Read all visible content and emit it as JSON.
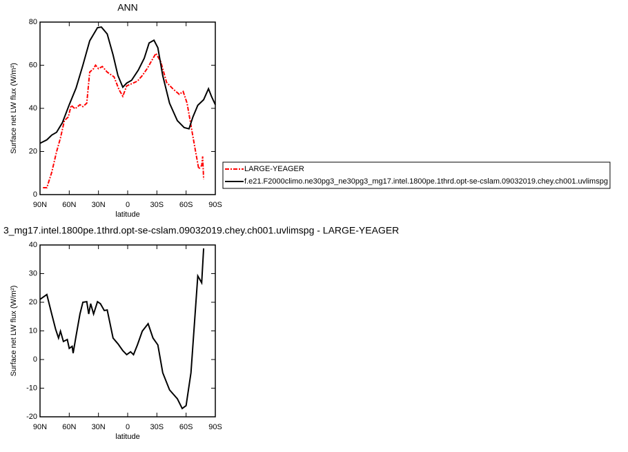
{
  "chart_data": [
    {
      "type": "line",
      "title": "ANN",
      "xlabel": "latitude",
      "ylabel": "Surface net LW flux (W/m²)",
      "xlim": [
        90,
        -90
      ],
      "ylim": [
        0,
        80
      ],
      "xticks": [
        {
          "value": 90,
          "label": "90N"
        },
        {
          "value": 60,
          "label": "60N"
        },
        {
          "value": 30,
          "label": "30N"
        },
        0,
        {
          "value": -30,
          "label": "30S"
        },
        {
          "value": -60,
          "label": "60S"
        },
        {
          "value": -90,
          "label": "90S"
        }
      ],
      "yticks": [
        0,
        20,
        40,
        60,
        80
      ],
      "legend": "right",
      "series": [
        {
          "name": "LARGE-YEAGER",
          "color": "#ff0000",
          "line_style": "dashed",
          "x": [
            87,
            83,
            78,
            73,
            69,
            65,
            61,
            58,
            54,
            49,
            46,
            42,
            39,
            35,
            33,
            30,
            26,
            21,
            14,
            9,
            5,
            1,
            -4,
            -10,
            -15,
            -20,
            -24,
            -29,
            -34,
            -40,
            -47,
            -53,
            -57,
            -61,
            -66,
            -70,
            -73,
            -76,
            -77,
            -78
          ],
          "values": [
            3.2,
            3.2,
            10.3,
            19.9,
            26.3,
            34.3,
            36,
            41.4,
            39.8,
            41.7,
            40.8,
            42.4,
            56.8,
            58.4,
            60,
            58.4,
            59.4,
            56.8,
            54.6,
            48.8,
            45.6,
            50.4,
            51.4,
            52.6,
            55.2,
            58.4,
            61.6,
            65.5,
            61.6,
            52,
            48.8,
            46.5,
            47.8,
            42.4,
            29.5,
            19.3,
            11.9,
            13.5,
            17.7,
            7.1
          ]
        },
        {
          "name": "f.e21.F2000climo.ne30pg3_ne30pg3_mg17.intel.1800pe.1thrd.opt-se-cslam.09032019.chey.ch001.uvlimspg",
          "color": "#000000",
          "line_style": "solid",
          "x": [
            90,
            83,
            78,
            73,
            67,
            60,
            53,
            46,
            39,
            31,
            27,
            21,
            15,
            10,
            5,
            1,
            -4,
            -11,
            -17,
            -22,
            -27,
            -31,
            -36,
            -43,
            -51,
            -58,
            -63,
            -67,
            -72,
            -78,
            -83,
            -86,
            -90
          ],
          "values": [
            23.8,
            25.4,
            27.6,
            28.9,
            33.4,
            41.7,
            49.4,
            60,
            71.3,
            77.4,
            77.7,
            74.5,
            64.8,
            55.2,
            49.8,
            51.7,
            53,
            57.8,
            63.2,
            70.3,
            71.6,
            68.1,
            55.2,
            42.4,
            34.3,
            31.1,
            30.5,
            36,
            41.4,
            44,
            49.1,
            45.6,
            41.7
          ]
        }
      ]
    },
    {
      "type": "line",
      "title": "3_mg17.intel.1800pe.1thrd.opt-se-cslam.09032019.chey.ch001.uvlimspg - LARGE-YEAGER",
      "xlabel": "latitude",
      "ylabel": "Surface net LW flux (W/m²)",
      "xlim": [
        90,
        -90
      ],
      "ylim": [
        -20,
        40
      ],
      "xticks": [
        {
          "value": 90,
          "label": "90N"
        },
        {
          "value": 60,
          "label": "60N"
        },
        {
          "value": 30,
          "label": "30N"
        },
        0,
        {
          "value": -30,
          "label": "30S"
        },
        {
          "value": -60,
          "label": "60S"
        },
        {
          "value": -90,
          "label": "90S"
        }
      ],
      "yticks": [
        -20,
        -10,
        0,
        10,
        20,
        30,
        40
      ],
      "series": [
        {
          "color": "#000000",
          "line_style": "solid",
          "x": [
            90,
            83,
            78,
            74,
            71,
            69,
            66,
            62,
            60,
            57,
            56,
            53,
            49,
            46,
            42,
            40,
            38,
            35,
            31,
            28,
            24,
            21,
            15,
            10,
            5,
            1,
            -3,
            -6,
            -10,
            -15,
            -21,
            -26,
            -31,
            -36,
            -43,
            -51,
            -56,
            -60,
            -65,
            -69,
            -72,
            -76,
            -78
          ],
          "values": [
            21,
            22.7,
            15.9,
            10.6,
            7.5,
            9.9,
            6.3,
            7,
            3.9,
            4.6,
            2.2,
            8.2,
            15.9,
            20,
            20.2,
            15.9,
            19.5,
            15.9,
            20.2,
            19.5,
            17.1,
            17.3,
            7.5,
            5.5,
            3.1,
            1.7,
            2.7,
            1.7,
            5.1,
            9.9,
            12.5,
            7.5,
            5.1,
            -4.6,
            -10.6,
            -13.7,
            -17.1,
            -16.1,
            -4.6,
            14.7,
            29.2,
            26.8,
            38.8
          ]
        }
      ]
    }
  ]
}
